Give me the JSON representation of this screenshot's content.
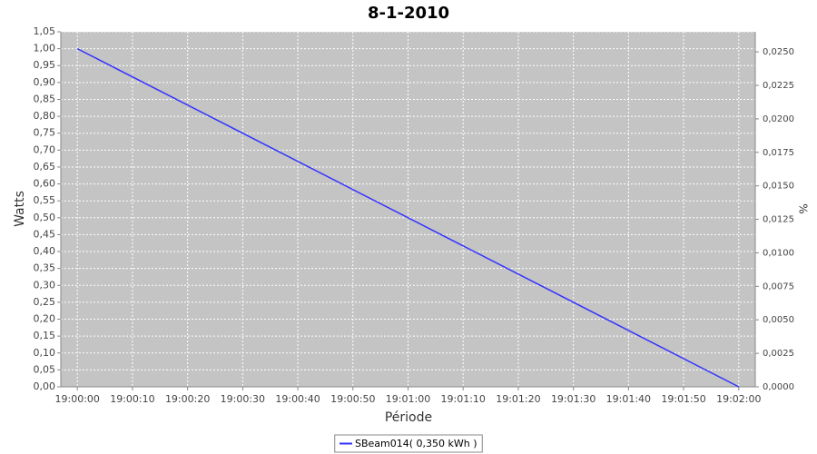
{
  "chart_data": {
    "type": "line",
    "title": "8-1-2010",
    "x_label": "Période",
    "y_label": "Watts",
    "y2_label": "%",
    "x": [
      "19:00:00",
      "19:02:00"
    ],
    "xlim": [
      "18:59:57",
      "19:02:03"
    ],
    "xticks": [
      "19:00:00",
      "19:00:10",
      "19:00:20",
      "19:00:30",
      "19:00:40",
      "19:00:50",
      "19:01:00",
      "19:01:10",
      "19:01:20",
      "19:01:30",
      "19:01:40",
      "19:01:50",
      "19:02:00"
    ],
    "series": [
      {
        "name": "SBeam014( 0,350 kWh )",
        "color": "#3333ff",
        "values": [
          1,
          0
        ]
      }
    ],
    "ylim": [
      0,
      1.05
    ],
    "yticks": [
      {
        "value": 0,
        "label": "0,00"
      },
      {
        "value": 0.05,
        "label": "0,05"
      },
      {
        "value": 0.1,
        "label": "0,10"
      },
      {
        "value": 0.15,
        "label": "0,15"
      },
      {
        "value": 0.2,
        "label": "0,20"
      },
      {
        "value": 0.25,
        "label": "0,25"
      },
      {
        "value": 0.3,
        "label": "0,30"
      },
      {
        "value": 0.35,
        "label": "0,35"
      },
      {
        "value": 0.4,
        "label": "0,40"
      },
      {
        "value": 0.45,
        "label": "0,45"
      },
      {
        "value": 0.5,
        "label": "0,50"
      },
      {
        "value": 0.55,
        "label": "0,55"
      },
      {
        "value": 0.6,
        "label": "0,60"
      },
      {
        "value": 0.65,
        "label": "0,65"
      },
      {
        "value": 0.7,
        "label": "0,70"
      },
      {
        "value": 0.75,
        "label": "0,75"
      },
      {
        "value": 0.8,
        "label": "0,80"
      },
      {
        "value": 0.85,
        "label": "0,85"
      },
      {
        "value": 0.9,
        "label": "0,90"
      },
      {
        "value": 0.95,
        "label": "0,95"
      },
      {
        "value": 1,
        "label": "1,00"
      },
      {
        "value": 1.05,
        "label": "1,05"
      }
    ],
    "y2lim": [
      0,
      0.0265
    ],
    "y2ticks": [
      {
        "value": 0,
        "label": "0,0000"
      },
      {
        "value": 0.0025,
        "label": "0,0025"
      },
      {
        "value": 0.005,
        "label": "0,0050"
      },
      {
        "value": 0.0075,
        "label": "0,0075"
      },
      {
        "value": 0.01,
        "label": "0,0100"
      },
      {
        "value": 0.0125,
        "label": "0,0125"
      },
      {
        "value": 0.015,
        "label": "0,0150"
      },
      {
        "value": 0.0175,
        "label": "0,0175"
      },
      {
        "value": 0.02,
        "label": "0,0200"
      },
      {
        "value": 0.0225,
        "label": "0,0225"
      },
      {
        "value": 0.025,
        "label": "0,0250"
      }
    ],
    "grid": true,
    "plot_background": "#c4c4c4",
    "legend": "bottom"
  }
}
